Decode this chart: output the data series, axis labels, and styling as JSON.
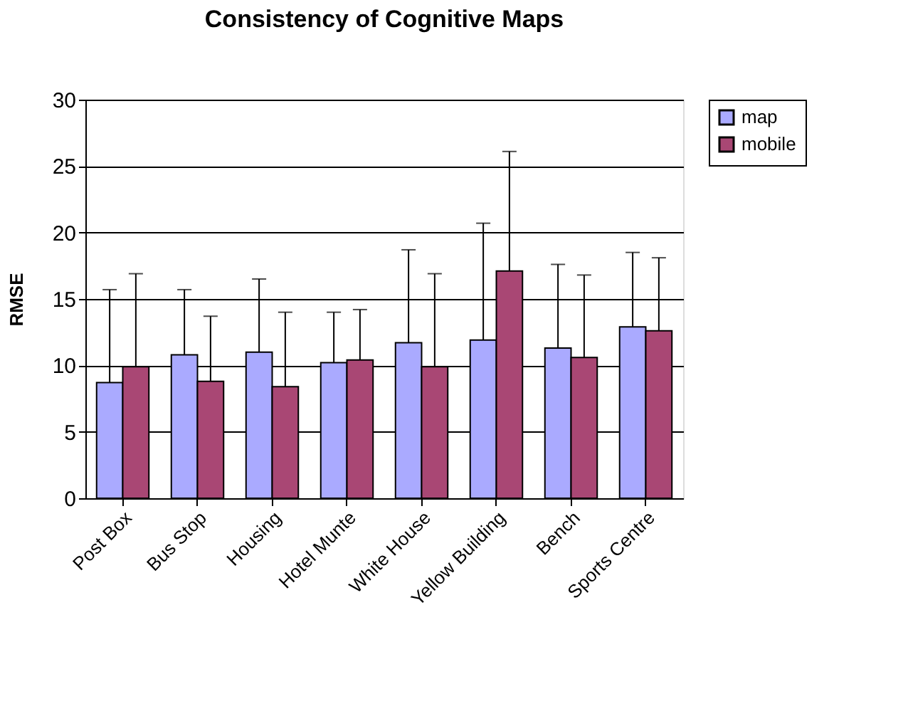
{
  "chart_data": {
    "type": "bar",
    "title": "Consistency of Cognitive Maps",
    "ylabel": "RMSE",
    "categories": [
      "Post Box",
      "Bus Stop",
      "Housing",
      "Hotel Munte",
      "White House",
      "Yellow Building",
      "Bench",
      "Sports Centre"
    ],
    "series": [
      {
        "name": "map",
        "color": "#aaaaff",
        "values": [
          8.7,
          10.8,
          11.0,
          10.2,
          11.7,
          11.9,
          11.3,
          12.9
        ],
        "errors": [
          [
            8.7,
            15.7
          ],
          [
            10.8,
            15.7
          ],
          [
            11.0,
            16.5
          ],
          [
            10.2,
            14.0
          ],
          [
            11.7,
            18.7
          ],
          [
            11.9,
            20.7
          ],
          [
            11.3,
            17.6
          ],
          [
            12.9,
            18.5
          ]
        ]
      },
      {
        "name": "mobile",
        "color": "#a94774",
        "values": [
          9.9,
          8.8,
          8.4,
          10.4,
          9.9,
          17.1,
          10.6,
          12.6
        ],
        "errors": [
          [
            9.9,
            16.9
          ],
          [
            8.8,
            13.7
          ],
          [
            8.4,
            14.0
          ],
          [
            10.4,
            14.2
          ],
          [
            9.9,
            16.9
          ],
          [
            17.1,
            26.1
          ],
          [
            10.6,
            16.8
          ],
          [
            12.6,
            18.1
          ]
        ]
      }
    ],
    "ylim": [
      0,
      30
    ],
    "yticks": [
      0,
      5,
      10,
      15,
      20,
      25,
      30
    ],
    "grid": "y",
    "legend": "right"
  }
}
